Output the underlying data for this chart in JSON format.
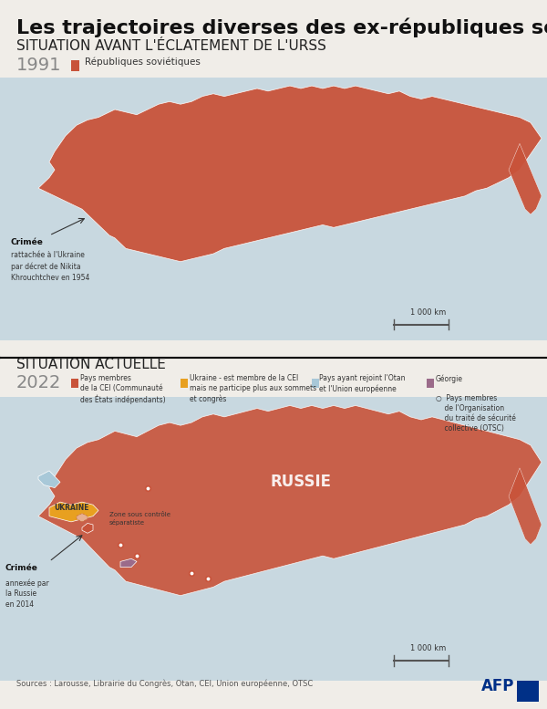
{
  "title": "Les trajectoires diverses des ex-républiques soviétiques",
  "section1_title": "Situation avant l'éclatement de l'URSS",
  "section1_year": "1991",
  "section1_legend": "Républiques soviétiques",
  "section1_legend_color": "#C8533A",
  "section2_title": "Situation actuelle",
  "section2_year": "2022",
  "legend2_items": [
    {
      "label": "Pays membres\nde la CEI (Communauté\ndes États indépendants)",
      "color": "#C8533A"
    },
    {
      "label": "Ukraine - est membre de la CEI\nmais ne participe plus aux sommets\net congrès",
      "color": "#E8A020"
    },
    {
      "label": "Pays ayant rejoint l'Otan\net l'Union européenne",
      "color": "#A8C8D8"
    },
    {
      "label": "Géorgie",
      "color": "#9B6B8A"
    },
    {
      "label": "Pays membres\nde l'Organisation\ndu traité de sécurité\ncollective (OTSC)",
      "symbol": "o"
    }
  ],
  "sources": "Sources : Larousse, Librairie du Congrès, Otan, CEI, Union européenne, OTSC",
  "afp": "AFP",
  "scale_text": "1 000 km",
  "map1_annotation1_label": "Crimée",
  "map1_annotation1_text": "rattachée à l'Ukraine\npar décret de Nikita\nKhrouchtchev en 1954",
  "map2_annotation1_label": "Crimée",
  "map2_annotation1_text": "annexée par\nla Russie\nen 2014",
  "map2_russia_label": "RUSSIE",
  "map2_ukraine_label": "UKRAINE",
  "map2_zone_label": "Zone sous contrôle\nséparatiste",
  "bg_color": "#F0EDE8",
  "map_bg_color": "#D8D4CC",
  "map_water_color": "#C8D8E0",
  "soviet_color": "#C8533A",
  "cei_color": "#C8533A",
  "ukraine_color": "#E8A020",
  "nato_color": "#A8C8D8",
  "georgia_color": "#9B6B8A",
  "title_fontsize": 16,
  "section_title_fontsize": 11,
  "year_fontsize": 14,
  "legend_fontsize": 7.5,
  "annotation_fontsize": 7,
  "figsize": [
    6.0,
    7.77
  ]
}
